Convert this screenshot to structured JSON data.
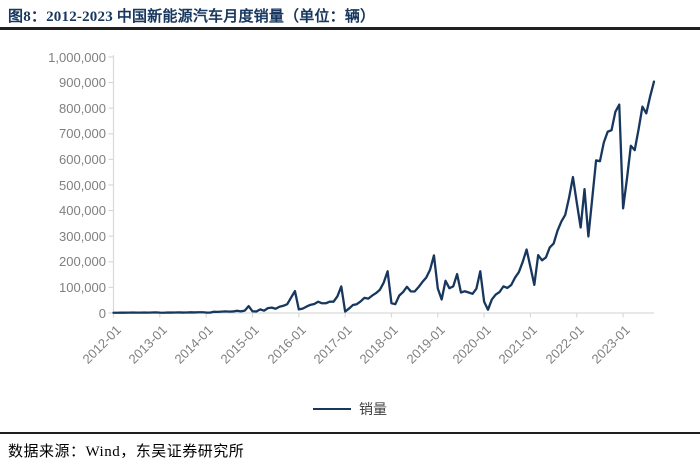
{
  "header": {
    "title": "图8：2012-2023 中国新能源汽车月度销量（单位：辆）"
  },
  "legend": {
    "label": "销量"
  },
  "footer": {
    "source": "数据来源：Wind，东吴证券研究所"
  },
  "colors": {
    "line": "#17375E",
    "title_text": "#17375E",
    "rule_dark": "#1f1f1f",
    "axis_text": "#7F7F7F",
    "axis_line": "#D9D9D9"
  },
  "chart_data": {
    "type": "line",
    "title": "2012-2023 中国新能源汽车月度销量（单位：辆）",
    "xlabel": "",
    "ylabel": "",
    "grid": false,
    "legend_position": "bottom",
    "ylim": [
      0,
      1000000
    ],
    "y_tick_interval": 100000,
    "y_tick_labels": [
      "0",
      "100,000",
      "200,000",
      "300,000",
      "400,000",
      "500,000",
      "600,000",
      "700,000",
      "800,000",
      "900,000",
      "1,000,000"
    ],
    "x_tick_labels": [
      "2012-01",
      "2013-01",
      "2014-01",
      "2015-01",
      "2016-01",
      "2017-01",
      "2018-01",
      "2019-01",
      "2020-01",
      "2021-01",
      "2022-01",
      "2023-01"
    ],
    "x_tick_month_indices": [
      0,
      12,
      24,
      36,
      48,
      60,
      72,
      84,
      96,
      108,
      120,
      132
    ],
    "x_start": "2012-01",
    "x_end": "2023-09",
    "frequency": "monthly",
    "series": [
      {
        "name": "销量",
        "values": [
          1100,
          900,
          1600,
          1300,
          1500,
          1700,
          1400,
          1600,
          1800,
          1600,
          2000,
          2400,
          1400,
          1100,
          2000,
          1700,
          1900,
          2200,
          1800,
          2000,
          2600,
          2200,
          2800,
          3000,
          1800,
          1500,
          5000,
          4500,
          5500,
          6500,
          5500,
          6000,
          8500,
          6500,
          9500,
          27000,
          6600,
          6000,
          14100,
          9000,
          19100,
          21100,
          16700,
          24500,
          28300,
          34300,
          60400,
          85500,
          14000,
          17200,
          25000,
          31800,
          35000,
          44000,
          38000,
          38100,
          44300,
          44100,
          65200,
          103600,
          5700,
          17200,
          31100,
          34400,
          45100,
          59200,
          56100,
          68000,
          77800,
          91000,
          119000,
          163000,
          38100,
          34400,
          67800,
          81900,
          102400,
          84600,
          84000,
          101000,
          121000,
          138000,
          169000,
          225000,
          95700,
          52900,
          126000,
          97000,
          104000,
          152000,
          80000,
          85000,
          80000,
          75000,
          95000,
          163000,
          44000,
          12900,
          53000,
          72000,
          82000,
          104000,
          98000,
          109000,
          138000,
          160000,
          200000,
          248000,
          179000,
          110000,
          226000,
          206000,
          217000,
          256000,
          271000,
          321000,
          357000,
          383000,
          450000,
          531000,
          431000,
          334000,
          484000,
          299000,
          447000,
          596000,
          593000,
          666000,
          708000,
          714000,
          786000,
          814000,
          408900,
          525200,
          653300,
          636000,
          717000,
          806000,
          780000,
          846000,
          904000
        ]
      }
    ]
  }
}
